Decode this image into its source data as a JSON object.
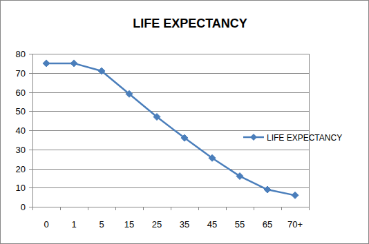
{
  "chart_data": {
    "type": "line",
    "title": "LIFE EXPECTANCY",
    "categories": [
      "0",
      "1",
      "5",
      "15",
      "25",
      "35",
      "45",
      "55",
      "65",
      "70+"
    ],
    "series": [
      {
        "name": "LIFE EXPECTANCY",
        "color": "#4a7ebb",
        "marker": "diamond",
        "values": [
          75,
          75,
          71,
          59,
          47,
          36,
          25.5,
          16,
          9,
          6
        ]
      }
    ],
    "ylim": [
      0,
      80
    ],
    "yticks": [
      0,
      10,
      20,
      30,
      40,
      50,
      60,
      70,
      80
    ],
    "grid": true,
    "legend": "right"
  }
}
